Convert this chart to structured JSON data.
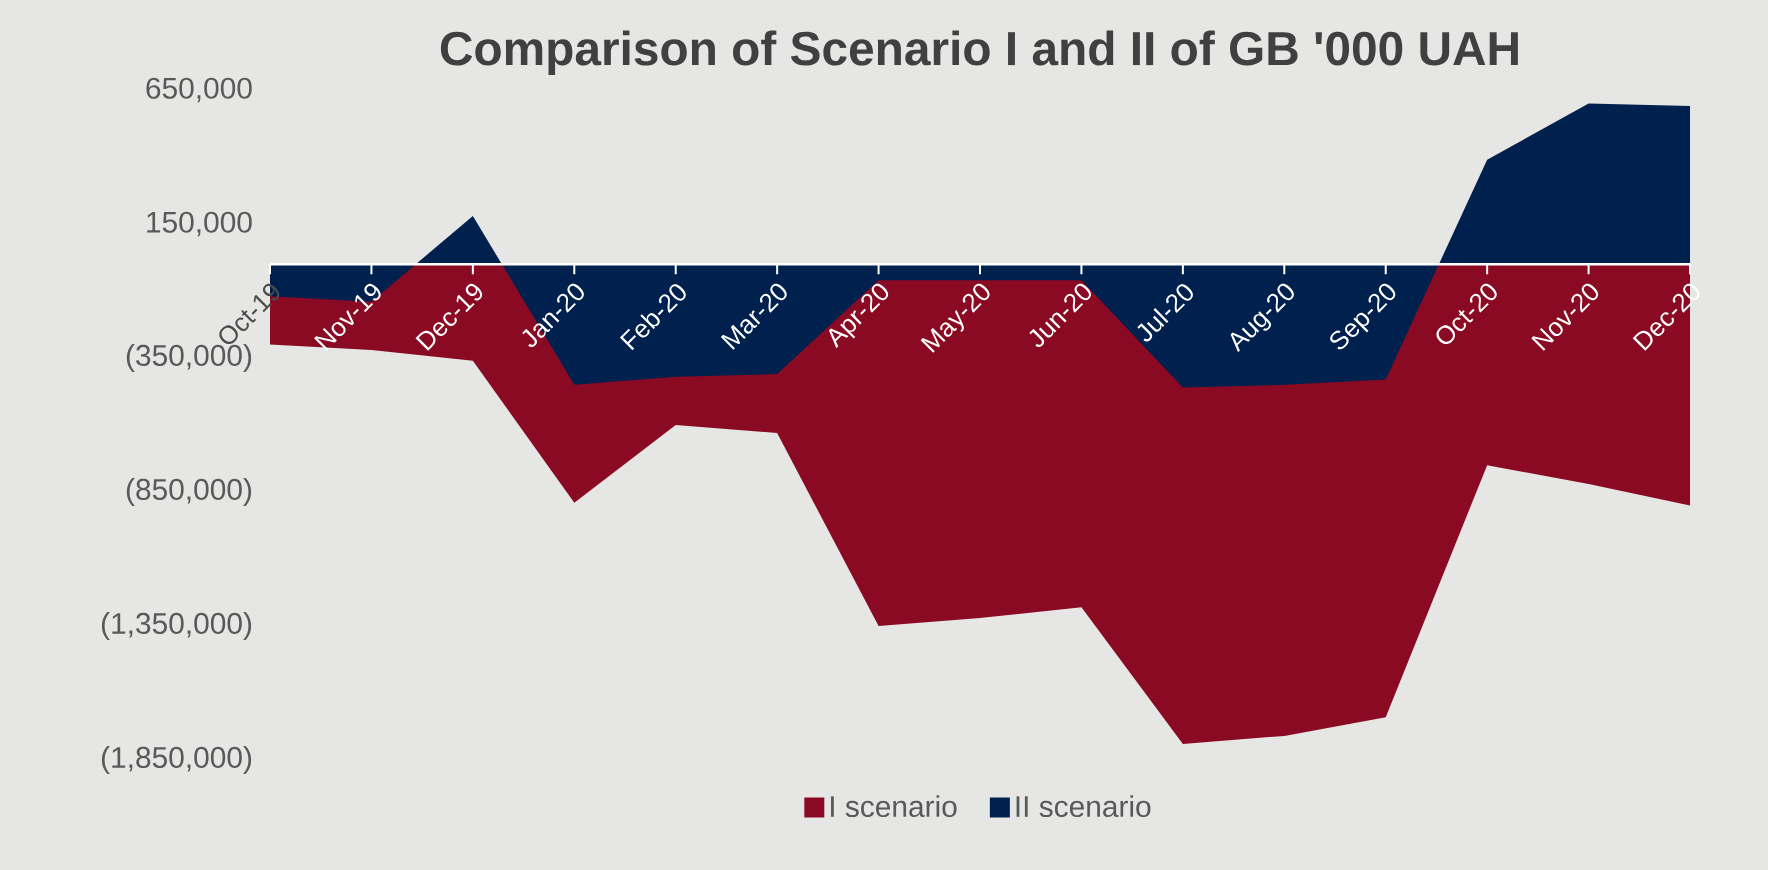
{
  "chart_data": {
    "type": "area",
    "title": "Comparison of Scenario I and II of GB '000 UAH",
    "categories": [
      "Oct-19",
      "Nov-19",
      "Dec-19",
      "Jan-20",
      "Feb-20",
      "Mar-20",
      "Apr-20",
      "May-20",
      "Jun-20",
      "Jul-20",
      "Aug-20",
      "Sep-20",
      "Oct-20",
      "Nov-20",
      "Dec-20"
    ],
    "series": [
      {
        "name": "I scenario",
        "color": "#8b0a23",
        "values": [
          -300000,
          -320000,
          -360000,
          -890000,
          -600000,
          -630000,
          -1350000,
          -1320000,
          -1280000,
          -1790000,
          -1760000,
          -1690000,
          -750000,
          -820000,
          -900000
        ]
      },
      {
        "name": "II scenario",
        "color": "#00204e",
        "values": [
          -120000,
          -140000,
          180000,
          -450000,
          -420000,
          -410000,
          -60000,
          -60000,
          -60000,
          -460000,
          -450000,
          -430000,
          390000,
          600000,
          590000
        ]
      }
    ],
    "ylim": [
      -1850000,
      650000
    ],
    "yticks": [
      {
        "value": 650000,
        "label": "650,000"
      },
      {
        "value": 150000,
        "label": "150,000"
      },
      {
        "value": -350000,
        "label": "(350,000)"
      },
      {
        "value": -850000,
        "label": "(850,000)"
      },
      {
        "value": -1350000,
        "label": "(1,350,000)"
      },
      {
        "value": -1850000,
        "label": "(1,850,000)"
      }
    ],
    "legend": "bottom"
  }
}
